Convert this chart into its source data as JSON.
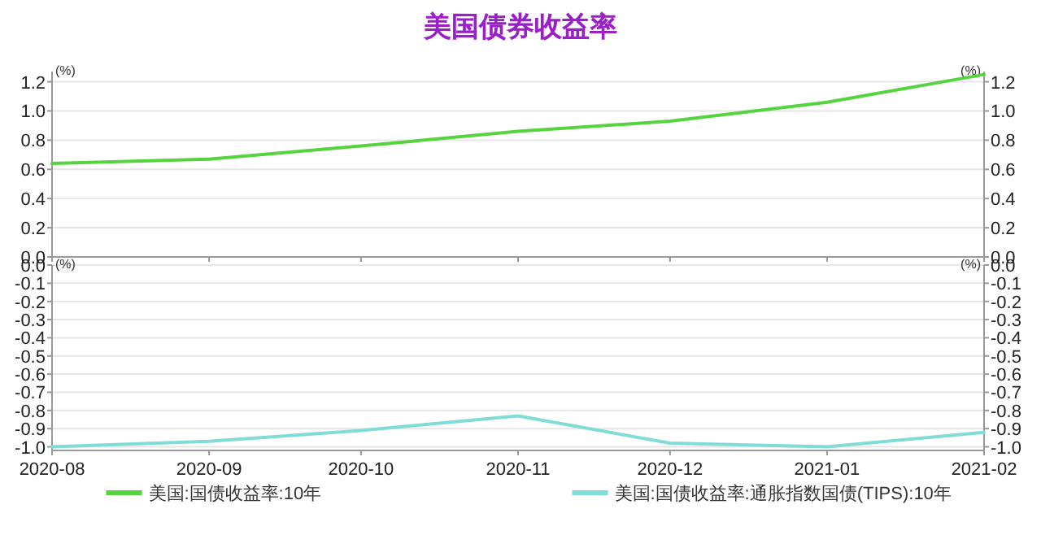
{
  "chart_data": [
    {
      "type": "line",
      "title": "美国债券收益率",
      "x": [
        "2020-08",
        "2020-09",
        "2020-10",
        "2020-11",
        "2020-12",
        "2021-01",
        "2021-02"
      ],
      "series": [
        {
          "name": "美国:国债收益率:10年",
          "color": "#55d43f",
          "values": [
            0.64,
            0.67,
            0.76,
            0.86,
            0.93,
            1.06,
            1.25
          ]
        }
      ],
      "xlim": [
        "2020-08",
        "2021-02"
      ],
      "xticks": [
        "2020-08",
        "2020-09",
        "2020-10",
        "2020-11",
        "2020-12",
        "2021-01",
        "2021-02"
      ],
      "ylim": [
        0,
        1.27
      ],
      "yticks": [
        {
          "value": 0,
          "label": "0.0"
        },
        0.2,
        0.4,
        0.6,
        0.8,
        {
          "value": 1,
          "label": "1.0"
        },
        1.2
      ],
      "y2lim": [
        0,
        1.27
      ],
      "y2ticks": [
        {
          "value": 0,
          "label": "0.0"
        },
        0.2,
        0.4,
        0.6,
        0.8,
        {
          "value": 1,
          "label": "1.0"
        },
        1.2
      ],
      "ylabel": "(%)",
      "y2label": "(%)",
      "tick_labels": "y",
      "grid": "y",
      "legend": "bottom",
      "line_style": "solid",
      "marker": "none"
    },
    {
      "type": "line",
      "x": [
        "2020-08",
        "2020-09",
        "2020-10",
        "2020-11",
        "2020-12",
        "2021-01",
        "2021-02"
      ],
      "series": [
        {
          "name": "美国:国债收益率:通胀指数国债(TIPS):10年",
          "color": "#7fdcd6",
          "values": [
            -1.0,
            -0.97,
            -0.91,
            -0.83,
            -0.98,
            -1.0,
            -0.92
          ]
        }
      ],
      "xlim": [
        "2020-08",
        "2021-02"
      ],
      "xticks": [
        "2020-08",
        "2020-09",
        "2020-10",
        "2020-11",
        "2020-12",
        "2021-01",
        "2021-02"
      ],
      "ylim": [
        -1.02,
        0
      ],
      "yticks": [
        {
          "value": -1,
          "label": "-1.0"
        },
        -0.9,
        -0.8,
        -0.7,
        -0.6,
        -0.5,
        -0.4,
        -0.3,
        -0.2,
        -0.1,
        {
          "value": 0,
          "label": "0.0"
        }
      ],
      "y2lim": [
        -1.02,
        0
      ],
      "y2ticks": [
        {
          "value": -1,
          "label": "-1.0"
        },
        -0.9,
        -0.8,
        -0.7,
        -0.6,
        -0.5,
        -0.4,
        -0.3,
        -0.2,
        -0.1,
        {
          "value": 0,
          "label": "0.0"
        }
      ],
      "ylabel": "(%)",
      "y2label": "(%)",
      "grid": "y",
      "legend": "bottom",
      "line_style": "solid",
      "marker": "none"
    }
  ]
}
